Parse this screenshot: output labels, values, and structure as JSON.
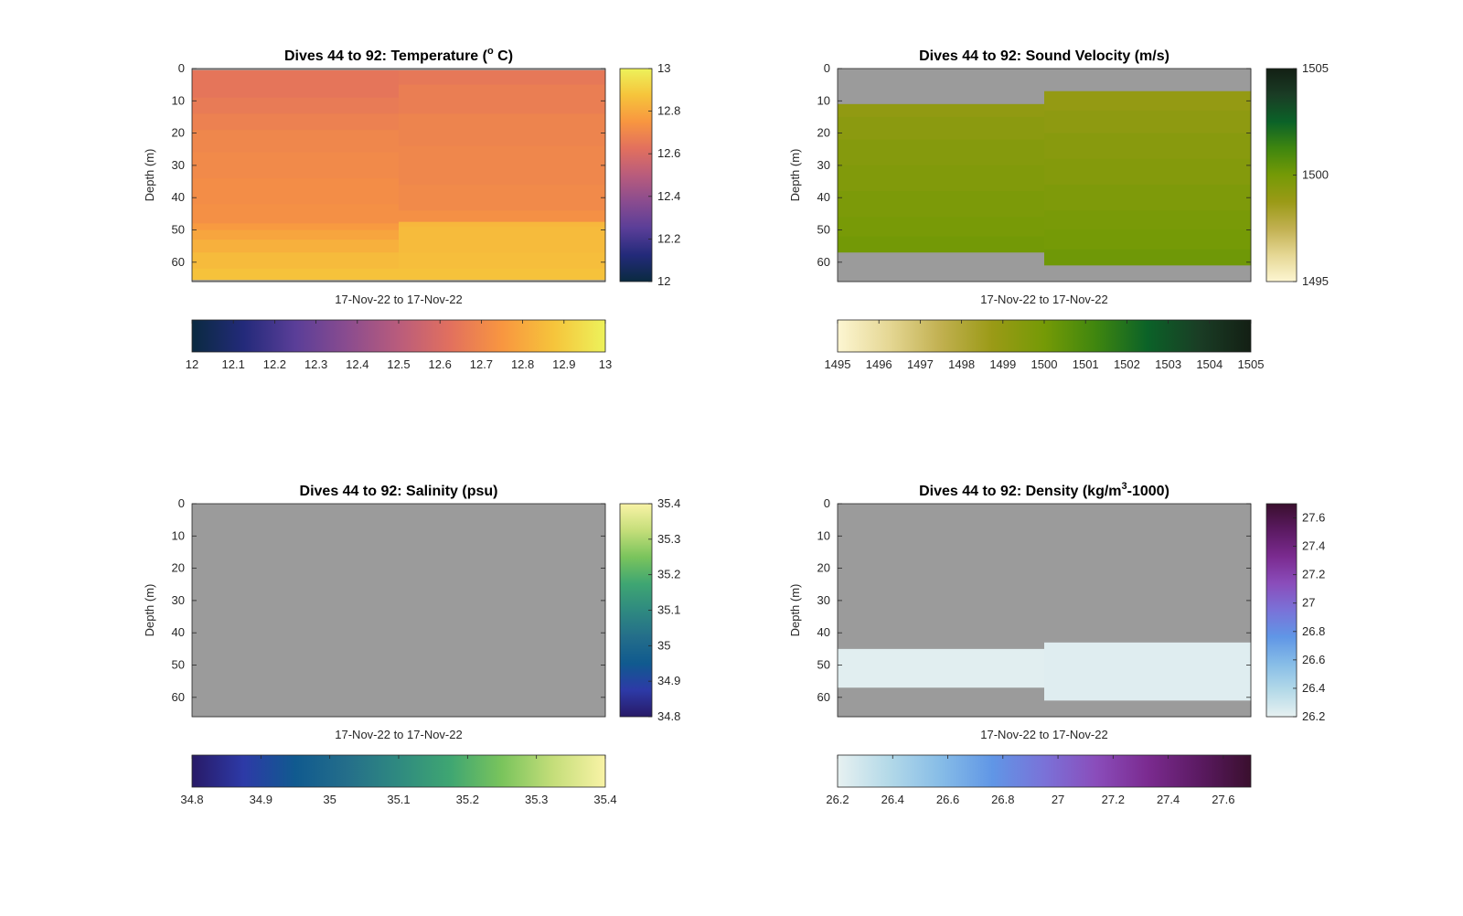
{
  "chart_data": [
    {
      "type": "heatmap",
      "title_main": "Dives 44 to 92: Temperature (",
      "title_sup": "o",
      "title_end": " C)",
      "xlabel": "17-Nov-22 to 17-Nov-22",
      "ylabel": "Depth (m)",
      "ylim": [
        0,
        66
      ],
      "yticks": [
        "0",
        "10",
        "20",
        "30",
        "40",
        "50",
        "60"
      ],
      "clim": [
        12,
        13
      ],
      "colormap": [
        "#0a2a40",
        "#232a7a",
        "#5a3e98",
        "#8a4c8f",
        "#b95c7c",
        "#e2705e",
        "#f89640",
        "#f6c43b",
        "#edf25b"
      ],
      "side_colorbar_ticks": [
        "12",
        "12.2",
        "12.4",
        "12.6",
        "12.8",
        "13"
      ],
      "bottom_colorbar_ticks": [
        "12",
        "12.1",
        "12.2",
        "12.3",
        "12.4",
        "12.5",
        "12.6",
        "12.7",
        "12.8",
        "12.9",
        "13"
      ],
      "missing_color": "#9b9b9b",
      "columns": [
        {
          "x_start": 0,
          "x_end": 0.5,
          "bands": [
            {
              "from": 0,
              "to": 0.5,
              "value": null
            },
            {
              "from": 0.5,
              "to": 4,
              "value": 12.64
            },
            {
              "from": 4,
              "to": 9,
              "value": 12.64
            },
            {
              "from": 9,
              "to": 14,
              "value": 12.66
            },
            {
              "from": 14,
              "to": 19,
              "value": 12.68
            },
            {
              "from": 19,
              "to": 26,
              "value": 12.7
            },
            {
              "from": 26,
              "to": 34,
              "value": 12.71
            },
            {
              "from": 34,
              "to": 42,
              "value": 12.72
            },
            {
              "from": 42,
              "to": 48,
              "value": 12.73
            },
            {
              "from": 48,
              "to": 50,
              "value": 12.76
            },
            {
              "from": 50,
              "to": 53,
              "value": 12.79
            },
            {
              "from": 53,
              "to": 57,
              "value": 12.82
            },
            {
              "from": 57,
              "to": 62,
              "value": 12.85
            },
            {
              "from": 62,
              "to": 65.5,
              "value": 12.87
            },
            {
              "from": 65.5,
              "to": 66,
              "value": null
            }
          ]
        },
        {
          "x_start": 0.5,
          "x_end": 1,
          "bands": [
            {
              "from": 0,
              "to": 0.5,
              "value": null
            },
            {
              "from": 0.5,
              "to": 5,
              "value": 12.65
            },
            {
              "from": 5,
              "to": 14,
              "value": 12.67
            },
            {
              "from": 14,
              "to": 24,
              "value": 12.69
            },
            {
              "from": 24,
              "to": 36,
              "value": 12.7
            },
            {
              "from": 36,
              "to": 44,
              "value": 12.71
            },
            {
              "from": 44,
              "to": 47.5,
              "value": 12.73
            },
            {
              "from": 47.5,
              "to": 49,
              "value": 12.84
            },
            {
              "from": 49,
              "to": 57,
              "value": 12.85
            },
            {
              "from": 57,
              "to": 62,
              "value": 12.86
            },
            {
              "from": 62,
              "to": 65.5,
              "value": 12.87
            },
            {
              "from": 65.5,
              "to": 66,
              "value": null
            }
          ]
        }
      ]
    },
    {
      "type": "heatmap",
      "title_main": "Dives 44 to 92: Sound Velocity (m/s)",
      "title_sup": "",
      "title_end": "",
      "xlabel": "17-Nov-22 to 17-Nov-22",
      "ylabel": "Depth (m)",
      "ylim": [
        0,
        66
      ],
      "yticks": [
        "0",
        "10",
        "20",
        "30",
        "40",
        "50",
        "60"
      ],
      "clim": [
        1495,
        1505
      ],
      "colormap": [
        "#fdf6d2",
        "#e5d794",
        "#c1b050",
        "#9a9a16",
        "#759a06",
        "#3f860f",
        "#0b6228",
        "#1a3d25",
        "#131f14"
      ],
      "side_colorbar_ticks": [
        "1495",
        "1500",
        "1505"
      ],
      "bottom_colorbar_ticks": [
        "1495",
        "1496",
        "1497",
        "1498",
        "1499",
        "1500",
        "1501",
        "1502",
        "1503",
        "1504",
        "1505"
      ],
      "missing_color": "#9b9b9b",
      "columns": [
        {
          "x_start": 0,
          "x_end": 0.5,
          "bands": [
            {
              "from": 0,
              "to": 11,
              "value": null
            },
            {
              "from": 11,
              "to": 15,
              "value": 1499.05
            },
            {
              "from": 15,
              "to": 22,
              "value": 1499.25
            },
            {
              "from": 22,
              "to": 30,
              "value": 1499.45
            },
            {
              "from": 30,
              "to": 38,
              "value": 1499.6
            },
            {
              "from": 38,
              "to": 46,
              "value": 1499.75
            },
            {
              "from": 46,
              "to": 52,
              "value": 1499.9
            },
            {
              "from": 52,
              "to": 57,
              "value": 1500.05
            },
            {
              "from": 57,
              "to": 66,
              "value": null
            }
          ]
        },
        {
          "x_start": 0.5,
          "x_end": 1,
          "bands": [
            {
              "from": 0,
              "to": 7,
              "value": null
            },
            {
              "from": 7,
              "to": 13,
              "value": 1498.95
            },
            {
              "from": 13,
              "to": 20,
              "value": 1499.15
            },
            {
              "from": 20,
              "to": 28,
              "value": 1499.35
            },
            {
              "from": 28,
              "to": 36,
              "value": 1499.5
            },
            {
              "from": 36,
              "to": 44,
              "value": 1499.7
            },
            {
              "from": 44,
              "to": 50,
              "value": 1499.85
            },
            {
              "from": 50,
              "to": 56,
              "value": 1500.0
            },
            {
              "from": 56,
              "to": 61,
              "value": 1500.15
            },
            {
              "from": 61,
              "to": 66,
              "value": null
            }
          ]
        }
      ]
    },
    {
      "type": "heatmap",
      "title_main": "Dives 44 to 92: Salinity (psu)",
      "title_sup": "",
      "title_end": "",
      "xlabel": "17-Nov-22 to 17-Nov-22",
      "ylabel": "Depth (m)",
      "ylim": [
        0,
        66
      ],
      "yticks": [
        "0",
        "10",
        "20",
        "30",
        "40",
        "50",
        "60"
      ],
      "clim": [
        34.8,
        35.4
      ],
      "colormap": [
        "#281a67",
        "#2d3aa7",
        "#105a8f",
        "#246e8a",
        "#2f8a80",
        "#3fa672",
        "#7ac45c",
        "#c5de7a",
        "#f9f3a6"
      ],
      "side_colorbar_ticks": [
        "34.8",
        "34.9",
        "35",
        "35.1",
        "35.2",
        "35.3",
        "35.4"
      ],
      "bottom_colorbar_ticks": [
        "34.8",
        "34.9",
        "35",
        "35.1",
        "35.2",
        "35.3",
        "35.4"
      ],
      "missing_color": "#9b9b9b",
      "columns": [
        {
          "x_start": 0,
          "x_end": 1,
          "bands": [
            {
              "from": 0,
              "to": 66,
              "value": null
            }
          ]
        }
      ]
    },
    {
      "type": "heatmap",
      "title_main": "Dives 44 to 92: Density (kg/m",
      "title_sup": "3",
      "title_end": "-1000)",
      "xlabel": "17-Nov-22 to 17-Nov-22",
      "ylabel": "Depth (m)",
      "ylim": [
        0,
        66
      ],
      "yticks": [
        "0",
        "10",
        "20",
        "30",
        "40",
        "50",
        "60"
      ],
      "clim": [
        26.2,
        27.7
      ],
      "colormap": [
        "#e7f1f1",
        "#b3d9e8",
        "#86bce7",
        "#6096e6",
        "#7a72d8",
        "#8a4dbb",
        "#7b2b90",
        "#5b1a62",
        "#3a0f2e"
      ],
      "side_colorbar_ticks": [
        "26.2",
        "26.4",
        "26.6",
        "26.8",
        "27",
        "27.2",
        "27.4",
        "27.6"
      ],
      "bottom_colorbar_ticks": [
        "26.2",
        "26.4",
        "26.6",
        "26.8",
        "27",
        "27.2",
        "27.4",
        "27.6"
      ],
      "missing_color": "#9b9b9b",
      "columns": [
        {
          "x_start": 0,
          "x_end": 0.5,
          "bands": [
            {
              "from": 0,
              "to": 45,
              "value": null
            },
            {
              "from": 45,
              "to": 57,
              "value": 26.22
            },
            {
              "from": 57,
              "to": 66,
              "value": null
            }
          ]
        },
        {
          "x_start": 0.5,
          "x_end": 1,
          "bands": [
            {
              "from": 0,
              "to": 43,
              "value": null
            },
            {
              "from": 43,
              "to": 61,
              "value": 26.23
            },
            {
              "from": 61,
              "to": 66,
              "value": null
            }
          ]
        }
      ]
    }
  ]
}
